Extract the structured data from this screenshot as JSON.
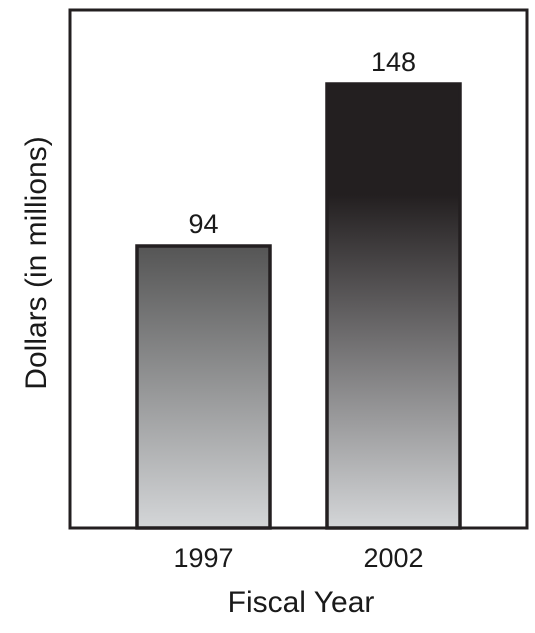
{
  "chart_data": {
    "type": "bar",
    "title": "",
    "xlabel": "Fiscal Year",
    "ylabel": "Dollars (in millions)",
    "categories": [
      "1997",
      "2002"
    ],
    "values": [
      94,
      148
    ],
    "data_labels": [
      "94",
      "148"
    ],
    "ylim": [
      0,
      160
    ],
    "grid": false,
    "legend": "none",
    "colors": {
      "bar_top_light": "#555555",
      "bar_bottom": "#d4d6d8",
      "bar_top_dark": "#231f20",
      "outline": "#231f20"
    }
  }
}
